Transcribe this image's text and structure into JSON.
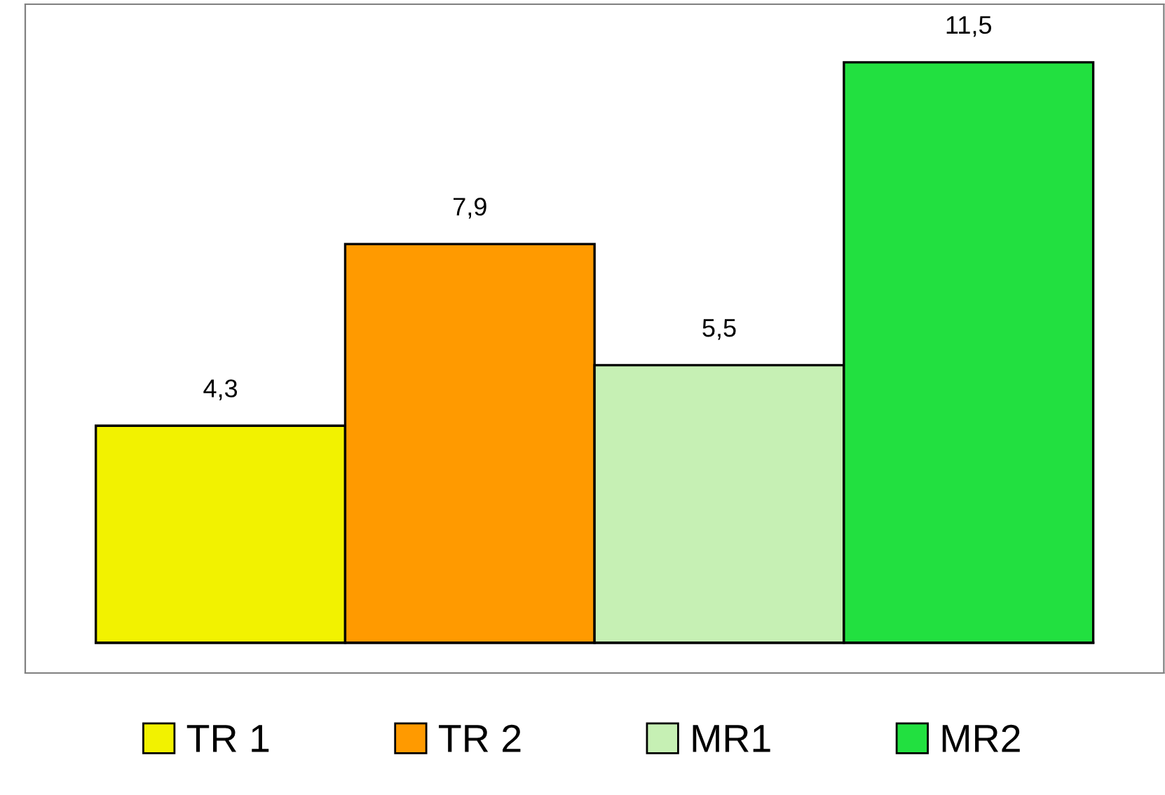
{
  "chart_data": {
    "type": "bar",
    "categories": [
      null
    ],
    "series": [
      {
        "name": "TR 1",
        "color": "#f2f200",
        "values": [
          4.3
        ],
        "value_labels": [
          "4,3"
        ]
      },
      {
        "name": "TR 2",
        "color": "#ff9a00",
        "values": [
          7.9
        ],
        "value_labels": [
          "7,9"
        ]
      },
      {
        "name": "MR1",
        "color": "#c6f0b4",
        "values": [
          5.5
        ],
        "value_labels": [
          "5,5"
        ]
      },
      {
        "name": "MR2",
        "color": "#22e040",
        "values": [
          11.5
        ],
        "value_labels": [
          "11,5"
        ]
      }
    ],
    "legend": "bottom"
  }
}
